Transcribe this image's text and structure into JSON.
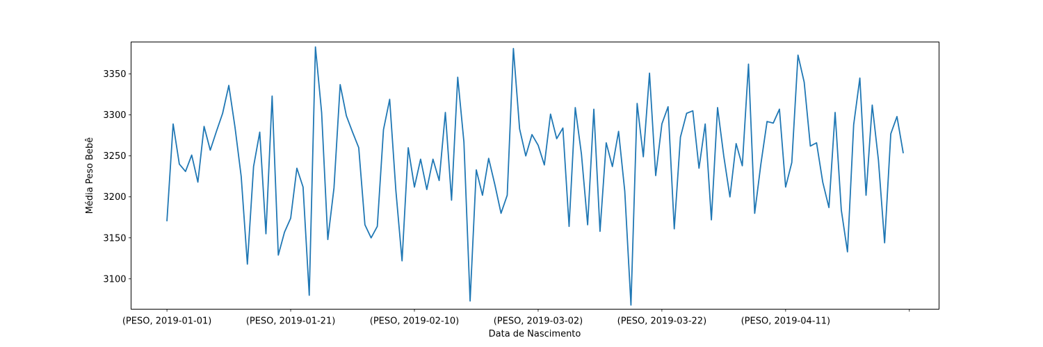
{
  "chart_data": {
    "type": "line",
    "title": "",
    "xlabel": "Data de Nascimento",
    "ylabel": "Média Peso Bebê",
    "x_start_date": "2019-01-01",
    "x_tick_labels": [
      "(PESO, 2019-01-01)",
      "(PESO, 2019-01-21)",
      "(PESO, 2019-02-10)",
      "(PESO, 2019-03-02)",
      "(PESO, 2019-03-22)",
      "(PESO, 2019-04-11)",
      ""
    ],
    "x_tick_days": [
      0,
      20,
      40,
      60,
      80,
      100,
      120
    ],
    "y_ticks": [
      3100,
      3150,
      3200,
      3250,
      3300,
      3350
    ],
    "ylim": [
      3063,
      3389
    ],
    "xlim": [
      -5.8,
      124.8
    ],
    "grid": false,
    "legend": "none",
    "line_color": "#1f77b4",
    "series": [
      {
        "values": [
          3171,
          3289,
          3240,
          3231,
          3251,
          3218,
          3286,
          3257,
          3280,
          3302,
          3336,
          3285,
          3225,
          3118,
          3237,
          3279,
          3155,
          3323,
          3129,
          3157,
          3174,
          3235,
          3212,
          3080,
          3383,
          3303,
          3148,
          3211,
          3337,
          3299,
          3279,
          3260,
          3166,
          3150,
          3164,
          3282,
          3319,
          3208,
          3122,
          3260,
          3212,
          3246,
          3209,
          3246,
          3220,
          3303,
          3196,
          3346,
          3267,
          3073,
          3233,
          3202,
          3247,
          3215,
          3180,
          3202,
          3381,
          3283,
          3250,
          3276,
          3263,
          3239,
          3301,
          3271,
          3284,
          3164,
          3309,
          3252,
          3166,
          3307,
          3158,
          3266,
          3237,
          3280,
          3207,
          3068,
          3314,
          3249,
          3351,
          3226,
          3289,
          3310,
          3161,
          3273,
          3302,
          3305,
          3235,
          3289,
          3172,
          3309,
          3250,
          3200,
          3265,
          3238,
          3362,
          3180,
          3240,
          3292,
          3290,
          3307,
          3212,
          3242,
          3373,
          3340,
          3262,
          3266,
          3218,
          3187,
          3303,
          3184,
          3133,
          3288,
          3345,
          3202,
          3312,
          3245,
          3144,
          3277,
          3298,
          3254
        ]
      }
    ]
  }
}
